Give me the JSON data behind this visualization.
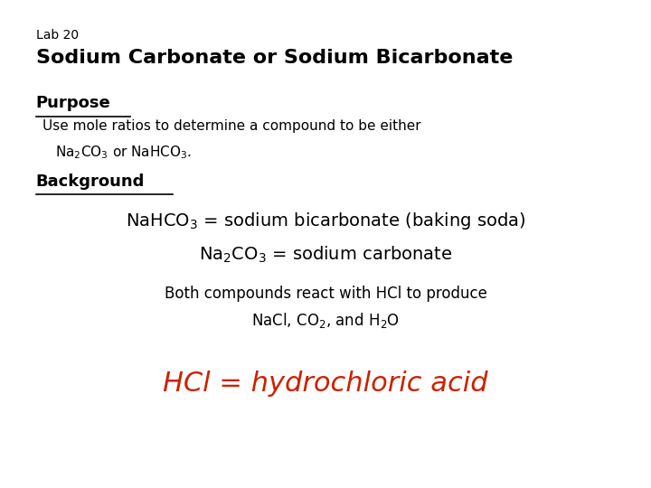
{
  "bg_color": "#ffffff",
  "text_color": "#000000",
  "red_color": "#cc2200",
  "lab_label": "Lab 20",
  "title": "Sodium Carbonate or Sodium Bicarbonate",
  "purpose_label": "Purpose",
  "purpose_text1": "Use mole ratios to determine a compound to be either",
  "background_label": "Background",
  "bg_line3": "Both compounds react with HCl to produce",
  "hcl_line": "HCl = hydrochloric acid"
}
